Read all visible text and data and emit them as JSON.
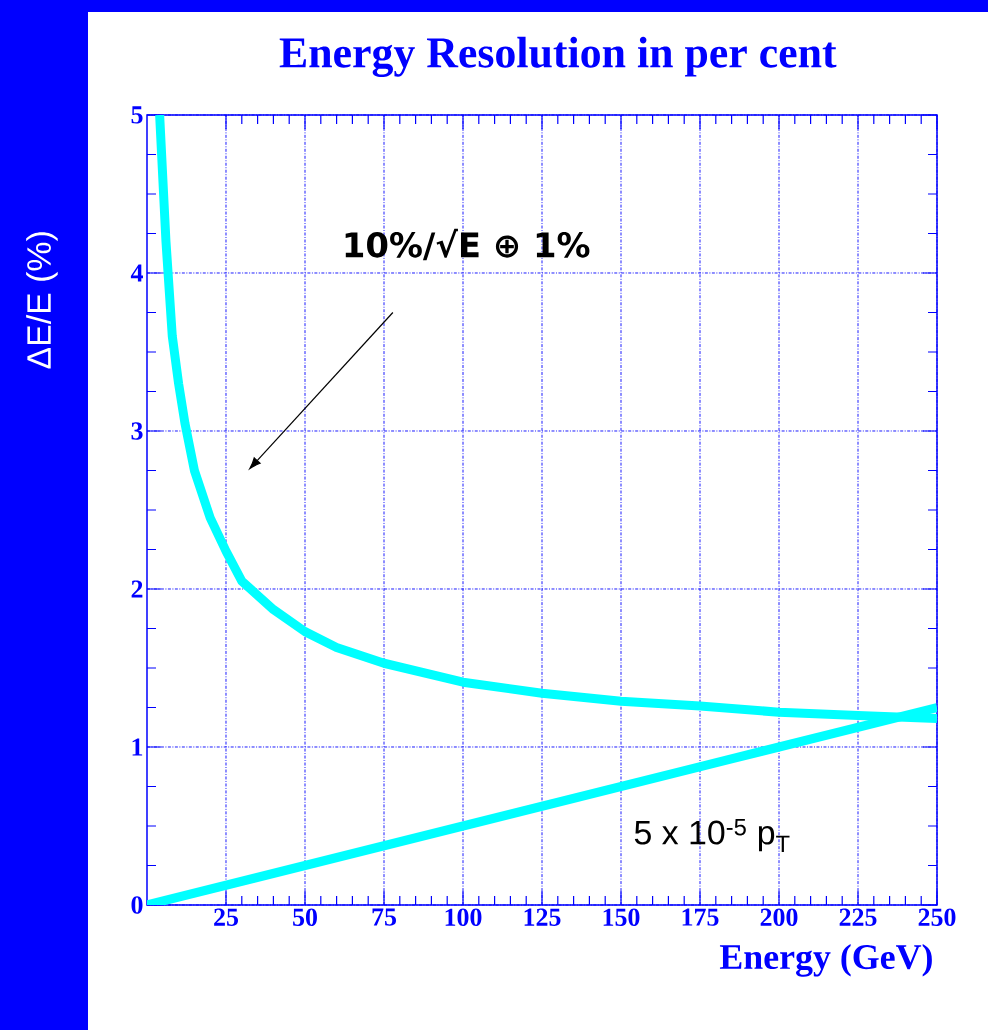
{
  "chart_data": {
    "type": "line",
    "title": "Energy Resolution in per cent",
    "xlabel": "Energy (GeV)",
    "ylabel": "ΔE/E (%)",
    "series": [
      {
        "color": "#00ffff",
        "x": [
          4,
          6,
          8,
          10,
          12,
          15,
          20,
          25,
          30,
          35,
          40,
          45,
          50,
          60,
          75,
          100,
          125,
          150,
          175,
          200,
          225,
          250
        ],
        "values": [
          5.0,
          4.2,
          3.6,
          3.3,
          3.05,
          2.75,
          2.45,
          2.24,
          2.05,
          1.96,
          1.87,
          1.8,
          1.73,
          1.63,
          1.53,
          1.41,
          1.34,
          1.29,
          1.26,
          1.22,
          1.2,
          1.18
        ]
      },
      {
        "name": "5 x 10$^{-5}$ p$_{T}$",
        "color": "#00ffff",
        "x": [
          0,
          250
        ],
        "values": [
          0,
          1.25
        ]
      }
    ],
    "annotations": [
      "10%/√E ⊕ 1%"
    ],
    "xlim": [
      0,
      250
    ],
    "ylim": [
      0,
      5
    ],
    "xticks": [
      25,
      50,
      75,
      100,
      125,
      150,
      175,
      200,
      225,
      250
    ],
    "yticks": [
      0,
      1,
      2,
      3,
      4,
      5
    ],
    "grid": true
  }
}
